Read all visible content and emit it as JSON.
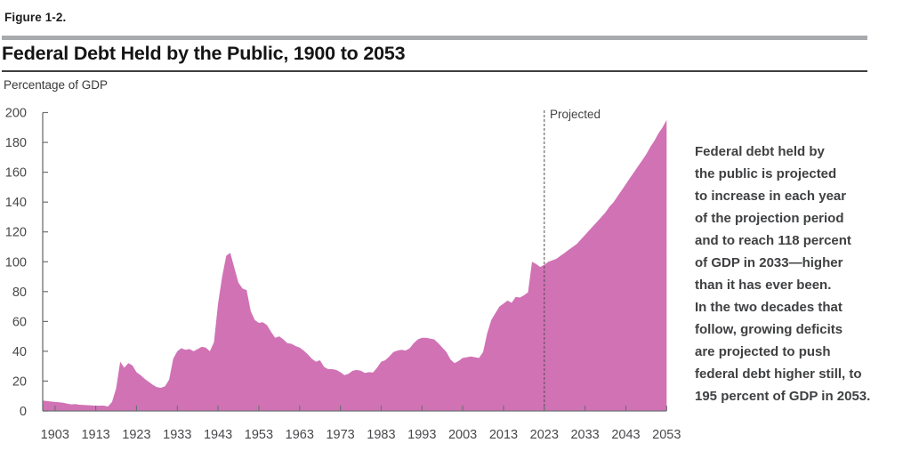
{
  "header": {
    "figure_label": "Figure 1-2.",
    "title": "Federal Debt Held by the Public, 1900 to 2053",
    "unit_label": "Percentage of GDP"
  },
  "annotation": {
    "lines": [
      "Federal debt held by",
      "the public is projected",
      "to increase in each year",
      "of the projection period",
      "and to reach 118 percent",
      "of GDP in 2033—higher",
      "than it has ever been.",
      "In the two decades that",
      "follow, growing deficits",
      "are projected to push",
      "federal debt higher still, to",
      "195 percent of GDP in 2053."
    ]
  },
  "chart_data": {
    "type": "area",
    "title": "Federal Debt Held by the Public, 1900 to 2053",
    "ylabel": "Percentage of GDP",
    "xlabel": "",
    "xlim": [
      1900,
      2053
    ],
    "ylim": [
      0,
      200
    ],
    "x_ticks": [
      1903,
      1913,
      1923,
      1933,
      1943,
      1953,
      1963,
      1973,
      1983,
      1993,
      2003,
      2013,
      2023,
      2033,
      2043,
      2053
    ],
    "y_ticks": [
      0,
      20,
      40,
      60,
      80,
      100,
      120,
      140,
      160,
      180,
      200
    ],
    "grid": false,
    "projection_label": "Projected",
    "projection_start_year": 2023,
    "key_values": {
      "debt_2023_pct": 98,
      "debt_2033_pct": 118,
      "debt_2053_pct": 195,
      "peak_1946_pct": 106
    },
    "colors": {
      "area_fill": "#d172b5",
      "axis": "#6f7073",
      "tick_text": "#47484b",
      "dashed_line": "#4d4e50"
    },
    "series": [
      {
        "name": "Federal debt held by the public (% of GDP)",
        "x_start": 1900,
        "x_step": 1,
        "values": [
          7,
          6.6,
          6.3,
          6,
          5.8,
          5.5,
          4.9,
          4.4,
          4.6,
          4.2,
          4,
          3.9,
          3.7,
          3.5,
          3.6,
          3.6,
          3,
          6,
          15,
          33,
          29,
          32,
          30.5,
          26,
          24,
          21.5,
          19.5,
          17.5,
          16,
          15.5,
          16.5,
          21,
          35,
          40,
          42,
          41,
          41.5,
          40,
          41.5,
          43,
          42.5,
          40,
          46,
          72,
          90,
          104,
          106,
          96,
          86,
          82,
          81,
          67,
          61,
          59,
          59.5,
          57.5,
          53,
          49,
          50,
          48,
          45.5,
          45,
          43.5,
          42.5,
          40.5,
          38,
          35,
          33,
          34,
          29.5,
          28,
          28,
          27.5,
          26,
          24,
          25,
          27,
          27.5,
          27,
          25.5,
          26,
          25.8,
          29,
          33,
          34,
          36.5,
          39.5,
          40.5,
          41,
          40.5,
          42,
          45.5,
          48,
          49,
          49,
          48.5,
          48,
          45.5,
          42.5,
          39.5,
          34.5,
          32,
          33.5,
          35.5,
          36,
          36.5,
          36,
          35.5,
          39.5,
          52,
          61,
          65.5,
          70,
          72,
          74,
          72.5,
          76.5,
          76,
          77.5,
          79.5,
          100,
          98.5,
          96.5,
          98,
          100,
          101,
          102,
          104,
          106,
          108,
          110,
          112,
          115,
          118,
          121,
          124,
          127,
          130,
          133,
          137,
          140,
          144,
          148,
          152,
          156,
          160,
          164,
          168,
          172,
          177,
          181,
          186,
          190,
          195
        ]
      }
    ]
  }
}
